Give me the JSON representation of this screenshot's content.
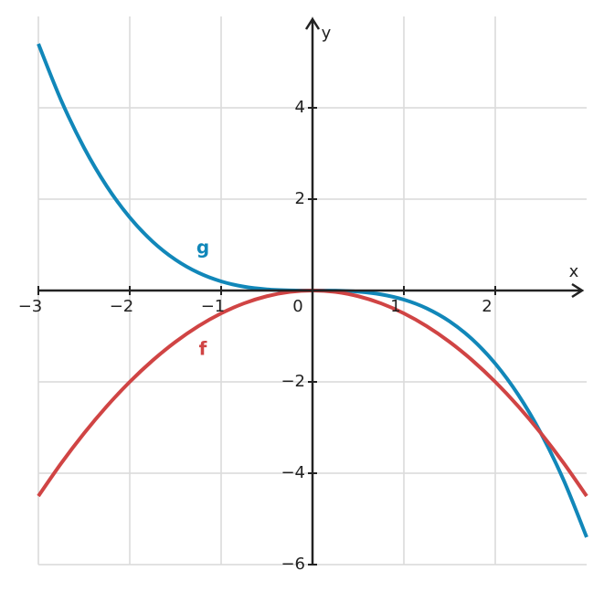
{
  "chart_data": {
    "type": "line",
    "x": [
      -3,
      -2.75,
      -2.5,
      -2.25,
      -2,
      -1.75,
      -1.5,
      -1.25,
      -1,
      -0.75,
      -0.5,
      -0.25,
      0,
      0.25,
      0.5,
      0.75,
      1,
      1.25,
      1.5,
      1.75,
      2,
      2.25,
      2.5,
      2.75,
      3
    ],
    "series": [
      {
        "name": "g",
        "color": "#1187b9",
        "values": [
          5.4,
          4.159375,
          3.125,
          2.278125,
          1.6,
          1.071875,
          0.675,
          0.390625,
          0.2,
          0.084375,
          0.025,
          0.003125,
          0,
          -0.003125,
          -0.025,
          -0.084375,
          -0.2,
          -0.390625,
          -0.675,
          -1.071875,
          -1.6,
          -2.278125,
          -3.125,
          -4.159375,
          -5.4
        ]
      },
      {
        "name": "f",
        "color": "#d04444",
        "values": [
          -4.5,
          -3.78125,
          -3.125,
          -2.53125,
          -2,
          -1.53125,
          -1.125,
          -0.78125,
          -0.5,
          -0.28125,
          -0.125,
          -0.03125,
          0,
          -0.03125,
          -0.125,
          -0.28125,
          -0.5,
          -0.78125,
          -1.125,
          -1.53125,
          -2,
          -2.53125,
          -3.125,
          -3.78125,
          -4.5
        ]
      }
    ],
    "x_label": "x",
    "y_label": "y",
    "xlim": [
      -3,
      3
    ],
    "ylim": [
      -6,
      6
    ],
    "xticks": [
      {
        "value": -3,
        "label": "−3"
      },
      {
        "value": -2,
        "label": "−2"
      },
      {
        "value": -1,
        "label": "−1"
      },
      0,
      1,
      2
    ],
    "yticks": [
      {
        "value": -6,
        "label": "−6"
      },
      {
        "value": -4,
        "label": "−4"
      },
      {
        "value": -2,
        "label": "−2"
      },
      2,
      4
    ],
    "grid": true
  }
}
